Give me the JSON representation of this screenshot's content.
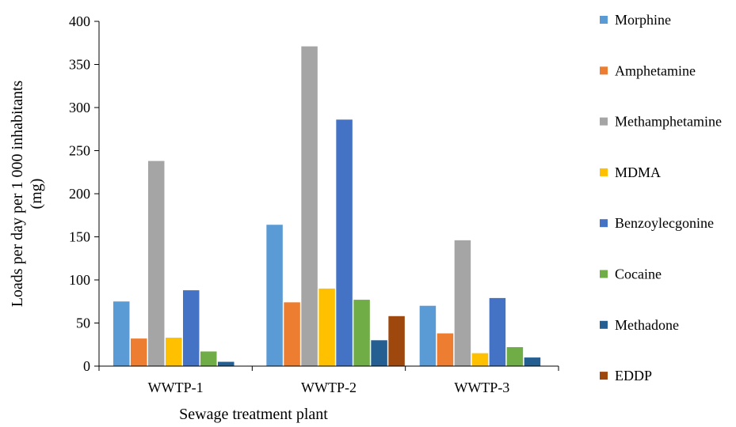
{
  "chart_data": {
    "type": "bar",
    "xlabel": "Sewage treatment plant",
    "ylabel_lines": [
      "Loads per day per 1 000 inhabitants",
      "(mg)"
    ],
    "ylim": [
      0,
      400
    ],
    "yticks": [
      0,
      50,
      100,
      150,
      200,
      250,
      300,
      350,
      400
    ],
    "grid": false,
    "legend_position": "right",
    "categories": [
      "WWTP-1",
      "WWTP-2",
      "WWTP-3"
    ],
    "series": [
      {
        "name": "Morphine",
        "color": "#5b9bd5",
        "values": [
          75,
          164,
          70
        ]
      },
      {
        "name": "Amphetamine",
        "color": "#ed7d31",
        "values": [
          32,
          74,
          38
        ]
      },
      {
        "name": "Methamphetamine",
        "color": "#a5a5a5",
        "values": [
          238,
          371,
          146
        ]
      },
      {
        "name": "MDMA",
        "color": "#ffc000",
        "values": [
          33,
          90,
          15
        ]
      },
      {
        "name": "Benzoylecgonine",
        "color": "#4472c4",
        "values": [
          88,
          286,
          79
        ]
      },
      {
        "name": "Cocaine",
        "color": "#70ad47",
        "values": [
          17,
          77,
          22
        ]
      },
      {
        "name": "Methadone",
        "color": "#255e91",
        "values": [
          5,
          30,
          10
        ]
      },
      {
        "name": "EDDP",
        "color": "#9e480e",
        "values": [
          0,
          58,
          0
        ]
      }
    ]
  }
}
